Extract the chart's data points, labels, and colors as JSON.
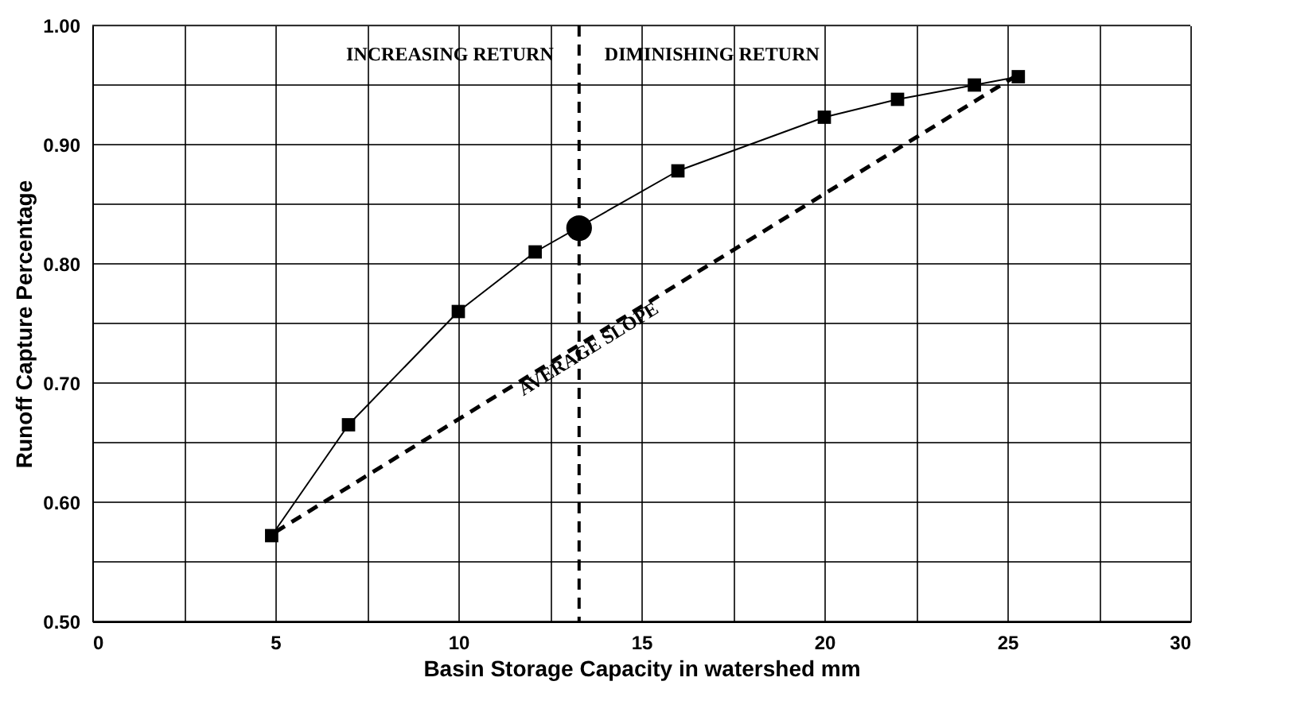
{
  "chart_data": {
    "type": "line",
    "xlabel": "Basin Storage Capacity in watershed mm",
    "ylabel": "Runoff Capture Percentage",
    "series": [
      {
        "color": "#000000",
        "marker": "square",
        "line_style": "solid",
        "x": [
          4.9,
          7,
          10,
          12.1,
          16,
          20,
          22,
          24.1,
          25.3
        ],
        "values": [
          0.572,
          0.665,
          0.76,
          0.81,
          0.878,
          0.923,
          0.938,
          0.95,
          0.957
        ]
      },
      {
        "type": "scatter",
        "color": "#000000",
        "marker": "circle",
        "x": [
          13.3
        ],
        "values": [
          0.83
        ]
      },
      {
        "color": "#000000",
        "marker": "none",
        "line_style": "dashed",
        "x": [
          5,
          25.2
        ],
        "values": [
          0.575,
          0.957
        ]
      }
    ],
    "xlim": [
      0,
      30
    ],
    "xticks": [
      0,
      {
        "value": 2.5,
        "label": null
      },
      5,
      {
        "value": 7.5,
        "label": null
      },
      10,
      {
        "value": 12.5,
        "label": null
      },
      15,
      {
        "value": 17.5,
        "label": null
      },
      20,
      {
        "value": 22.5,
        "label": null
      },
      25,
      {
        "value": 27.5,
        "label": null
      },
      30
    ],
    "ylim": [
      0.5,
      1.0
    ],
    "yticks": [
      {
        "value": 0.5,
        "label": "0.50"
      },
      {
        "value": 0.55,
        "label": null
      },
      {
        "value": 0.6,
        "label": "0.60"
      },
      {
        "value": 0.65,
        "label": null
      },
      {
        "value": 0.7,
        "label": "0.70"
      },
      {
        "value": 0.75,
        "label": null
      },
      {
        "value": 0.8,
        "label": "0.80"
      },
      {
        "value": 0.85,
        "label": null
      },
      {
        "value": 0.9,
        "label": "0.90"
      },
      {
        "value": 0.95,
        "label": null
      },
      {
        "value": 1.0,
        "label": "1.00"
      }
    ],
    "ref_lines": [
      {
        "axis": "x",
        "value": 13.3,
        "color": "#000000",
        "line_style": "dashed"
      }
    ],
    "annotations": [
      "INCREASING RETURN",
      "DIMINISHING RETURN",
      "AVERAGE SLOPE"
    ],
    "grid": true
  }
}
